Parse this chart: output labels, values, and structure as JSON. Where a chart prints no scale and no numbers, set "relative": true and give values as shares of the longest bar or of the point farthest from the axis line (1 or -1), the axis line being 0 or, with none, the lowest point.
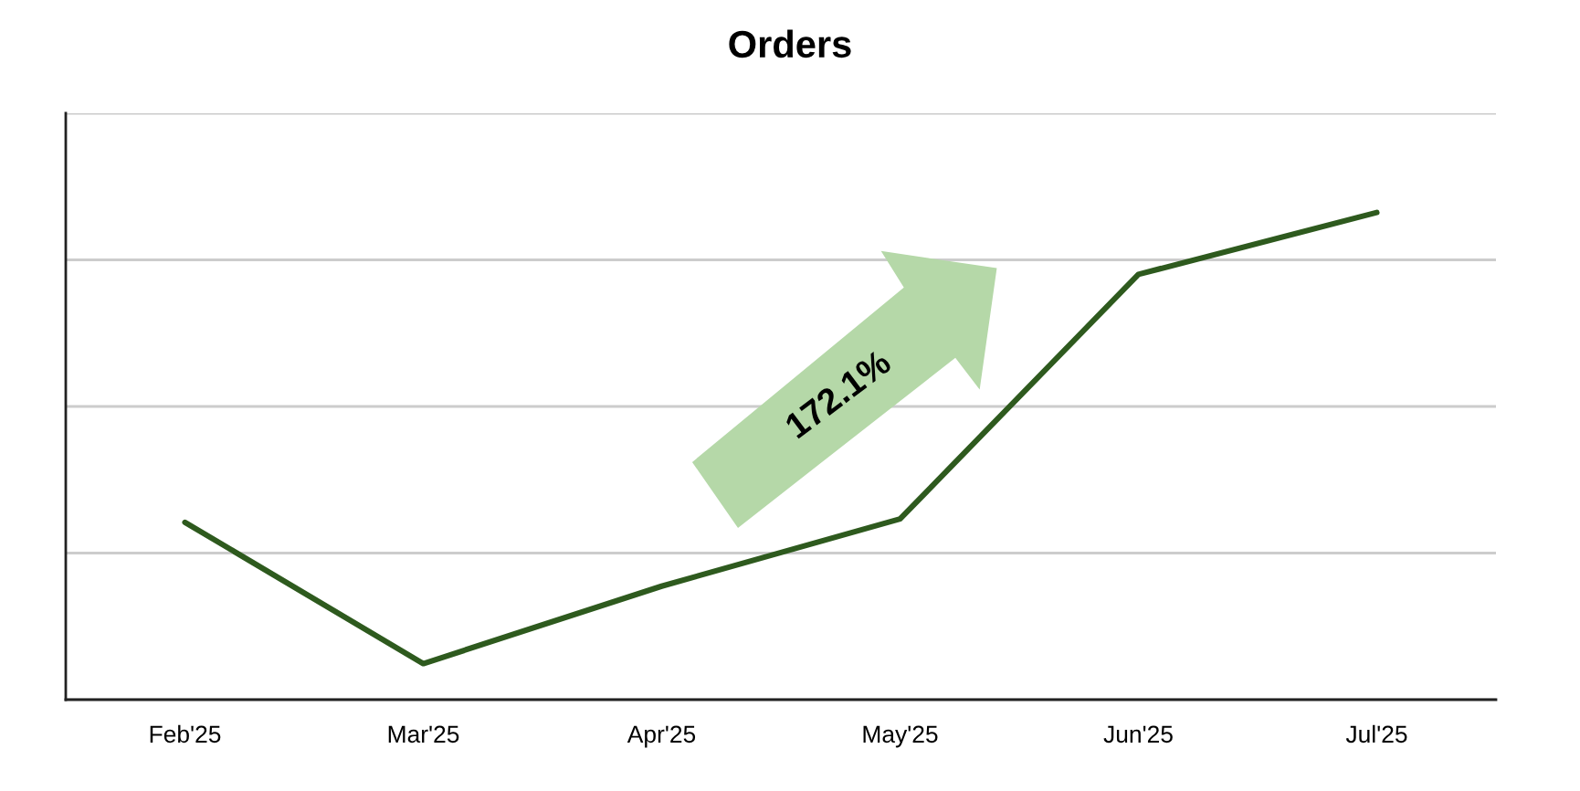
{
  "chart_data": {
    "type": "line",
    "title": "Orders",
    "categories": [
      "Feb'25",
      "Mar'25",
      "Apr'25",
      "May'25",
      "Jun'25",
      "Jul'25"
    ],
    "relative": true,
    "series": [
      {
        "color": "#2e5a1e",
        "values": [
          0.364,
          0.074,
          0.233,
          0.371,
          0.873,
          1
        ]
      }
    ],
    "grid": "y",
    "tick_labels": "x",
    "annotations": [
      "172.1%"
    ]
  }
}
